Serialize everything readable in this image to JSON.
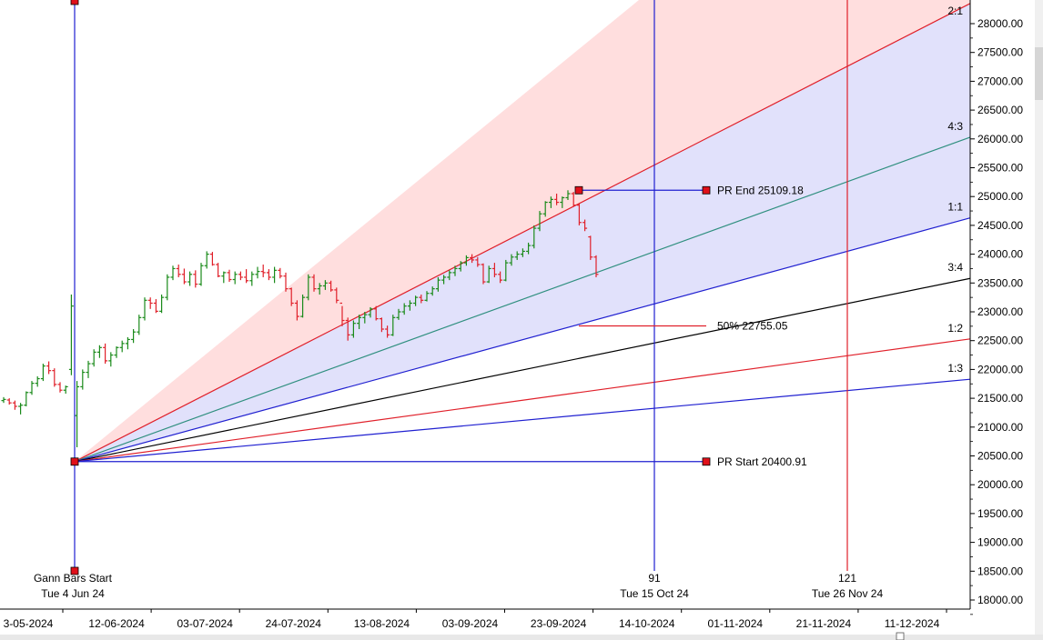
{
  "chart_data": {
    "type": "gann-fan",
    "y_range": [
      17950,
      28350
    ],
    "y_ticks": [
      18000,
      18500,
      19000,
      19500,
      20000,
      20500,
      21000,
      21500,
      22000,
      22500,
      23000,
      23500,
      24000,
      24500,
      25000,
      25500,
      26000,
      26500,
      27000,
      27500,
      28000
    ],
    "y_tick_labels": [
      "18000.00",
      "18500.00",
      "19000.00",
      "19500.00",
      "20000.00",
      "20500.00",
      "21000.00",
      "21500.00",
      "22000.00",
      "22500.00",
      "23000.00",
      "23500.00",
      "24000.00",
      "24500.00",
      "25000.00",
      "25500.00",
      "26000.00",
      "26500.00",
      "27000.00",
      "27500.00",
      "28000.00"
    ],
    "x_tick_labels": [
      "3-05-2024",
      "12-06-2024",
      "03-07-2024",
      "24-07-2024",
      "13-08-2024",
      "03-09-2024",
      "23-09-2024",
      "14-10-2024",
      "01-11-2024",
      "21-11-2024",
      "11-12-2024"
    ],
    "pr_start": {
      "label": "PR Start 20400.91",
      "value": 20400.91
    },
    "pr_end": {
      "label": "PR End 25109.18",
      "value": 25109.18
    },
    "pr_mid": {
      "label": "50% 22755.05",
      "value": 22755.05
    },
    "gann_start": {
      "title": "Gann Bars Start",
      "date": "Tue 4 Jun 24"
    },
    "markers": [
      {
        "bars": "91",
        "date": "Tue 15 Oct 24",
        "color": "#1f1fd0"
      },
      {
        "bars": "121",
        "date": "Tue 26 Nov 24",
        "color": "#e0202a"
      }
    ],
    "fan_lines": [
      {
        "ratio": "2:1",
        "color": "#e0202a",
        "end_value": 28350
      },
      {
        "ratio": "4:3",
        "color": "#2f8f7f",
        "end_value": 26030
      },
      {
        "ratio": "1:1",
        "color": "#1f1fd0",
        "end_value": 24630
      },
      {
        "ratio": "3:4",
        "color": "#000000",
        "end_value": 23580
      },
      {
        "ratio": "1:2",
        "color": "#e0202a",
        "end_value": 22530
      },
      {
        "ratio": "1:3",
        "color": "#1f1fd0",
        "end_value": 21830
      }
    ],
    "series": [
      {
        "values": [
          [
            21460,
            21520,
            21420,
            21480
          ],
          [
            21470,
            21500,
            21390,
            21420
          ],
          [
            21420,
            21460,
            21300,
            21360
          ],
          [
            21360,
            21420,
            21220,
            21380
          ],
          [
            21380,
            21620,
            21360,
            21600
          ],
          [
            21600,
            21800,
            21560,
            21760
          ],
          [
            21760,
            21880,
            21700,
            21840
          ],
          [
            21840,
            22100,
            21800,
            22060
          ],
          [
            22060,
            22140,
            21920,
            21980
          ],
          [
            21980,
            22020,
            21700,
            21740
          ],
          [
            21740,
            21780,
            21600,
            21640
          ],
          [
            21640,
            21720,
            21580,
            21700
          ],
          [
            22000,
            23300,
            21900,
            23100
          ],
          [
            21200,
            21800,
            20650,
            21700
          ],
          [
            21700,
            22000,
            21650,
            21950
          ],
          [
            21950,
            22150,
            21850,
            22100
          ],
          [
            22100,
            22350,
            22050,
            22300
          ],
          [
            22300,
            22420,
            22200,
            22380
          ],
          [
            22380,
            22450,
            22100,
            22150
          ],
          [
            22150,
            22300,
            22050,
            22250
          ],
          [
            22250,
            22400,
            22200,
            22380
          ],
          [
            22380,
            22500,
            22300,
            22450
          ],
          [
            22450,
            22560,
            22350,
            22520
          ],
          [
            22520,
            22700,
            22460,
            22650
          ],
          [
            22650,
            22950,
            22600,
            22900
          ],
          [
            22900,
            23250,
            22850,
            23200
          ],
          [
            23200,
            23250,
            23050,
            23150
          ],
          [
            23150,
            23220,
            22980,
            23010
          ],
          [
            23010,
            23300,
            22980,
            23250
          ],
          [
            23250,
            23650,
            23200,
            23600
          ],
          [
            23600,
            23800,
            23550,
            23750
          ],
          [
            23750,
            23820,
            23600,
            23650
          ],
          [
            23650,
            23750,
            23480,
            23520
          ],
          [
            23520,
            23700,
            23450,
            23650
          ],
          [
            23650,
            23720,
            23420,
            23480
          ],
          [
            23480,
            23850,
            23450,
            23800
          ],
          [
            23800,
            24050,
            23750,
            24000
          ],
          [
            24000,
            24040,
            23800,
            23820
          ],
          [
            23820,
            23850,
            23600,
            23620
          ],
          [
            23620,
            23700,
            23500,
            23680
          ],
          [
            23680,
            23730,
            23520,
            23560
          ],
          [
            23560,
            23700,
            23480,
            23650
          ],
          [
            23650,
            23700,
            23550,
            23600
          ],
          [
            23600,
            23740,
            23500,
            23540
          ],
          [
            23540,
            23700,
            23450,
            23650
          ],
          [
            23650,
            23780,
            23580,
            23700
          ],
          [
            23700,
            23820,
            23600,
            23680
          ],
          [
            23680,
            23740,
            23550,
            23600
          ],
          [
            23600,
            23780,
            23500,
            23720
          ],
          [
            23720,
            23760,
            23580,
            23620
          ],
          [
            23620,
            23680,
            23350,
            23400
          ],
          [
            23400,
            23420,
            23100,
            23150
          ],
          [
            23150,
            23200,
            22850,
            22920
          ],
          [
            22920,
            23300,
            22900,
            23250
          ],
          [
            23250,
            23650,
            23200,
            23600
          ],
          [
            23600,
            23650,
            23350,
            23400
          ],
          [
            23400,
            23500,
            23300,
            23450
          ],
          [
            23450,
            23550,
            23380,
            23500
          ],
          [
            23500,
            23540,
            23350,
            23380
          ],
          [
            23380,
            23420,
            23150,
            23200
          ],
          [
            23150,
            23100,
            22750,
            22850
          ],
          [
            22850,
            22900,
            22500,
            22600
          ],
          [
            22600,
            22850,
            22550,
            22800
          ],
          [
            22800,
            22950,
            22700,
            22900
          ],
          [
            22900,
            23000,
            22800,
            22950
          ],
          [
            22950,
            23080,
            22900,
            23050
          ],
          [
            23050,
            23100,
            22850,
            22880
          ],
          [
            22880,
            22900,
            22650,
            22700
          ],
          [
            22700,
            22760,
            22550,
            22600
          ],
          [
            22600,
            22950,
            22580,
            22900
          ],
          [
            22900,
            23050,
            22860,
            23000
          ],
          [
            23000,
            23150,
            22950,
            23100
          ],
          [
            23100,
            23200,
            23020,
            23150
          ],
          [
            23150,
            23280,
            23100,
            23250
          ],
          [
            23250,
            23300,
            23150,
            23200
          ],
          [
            23200,
            23360,
            23180,
            23320
          ],
          [
            23320,
            23440,
            23280,
            23400
          ],
          [
            23400,
            23600,
            23350,
            23550
          ],
          [
            23550,
            23640,
            23480,
            23600
          ],
          [
            23600,
            23720,
            23550,
            23680
          ],
          [
            23680,
            23800,
            23620,
            23750
          ],
          [
            23750,
            23880,
            23700,
            23850
          ],
          [
            23850,
            23980,
            23800,
            23940
          ],
          [
            23940,
            24000,
            23850,
            23900
          ],
          [
            23900,
            23950,
            23780,
            23820
          ],
          [
            23820,
            23840,
            23480,
            23520
          ],
          [
            23520,
            23800,
            23500,
            23750
          ],
          [
            23750,
            23850,
            23600,
            23650
          ],
          [
            23650,
            23700,
            23500,
            23550
          ],
          [
            23550,
            23900,
            23530,
            23850
          ],
          [
            23850,
            24000,
            23800,
            23950
          ],
          [
            23950,
            24050,
            23900,
            24000
          ],
          [
            24000,
            24100,
            23950,
            24050
          ],
          [
            24050,
            24200,
            24000,
            24150
          ],
          [
            24150,
            24500,
            24100,
            24450
          ],
          [
            24450,
            24750,
            24400,
            24700
          ],
          [
            24700,
            24920,
            24650,
            24900
          ],
          [
            24900,
            25000,
            24800,
            24950
          ],
          [
            24950,
            25050,
            24850,
            24900
          ],
          [
            24900,
            25000,
            24800,
            24980
          ],
          [
            24980,
            25109,
            24940,
            25050
          ],
          [
            25050,
            25080,
            24820,
            24850
          ],
          [
            24850,
            24880,
            24500,
            24550
          ],
          [
            24550,
            24600,
            24400,
            24450
          ],
          [
            24300,
            24320,
            23900,
            23950
          ],
          [
            23950,
            23980,
            23600,
            23650
          ]
        ]
      }
    ]
  }
}
